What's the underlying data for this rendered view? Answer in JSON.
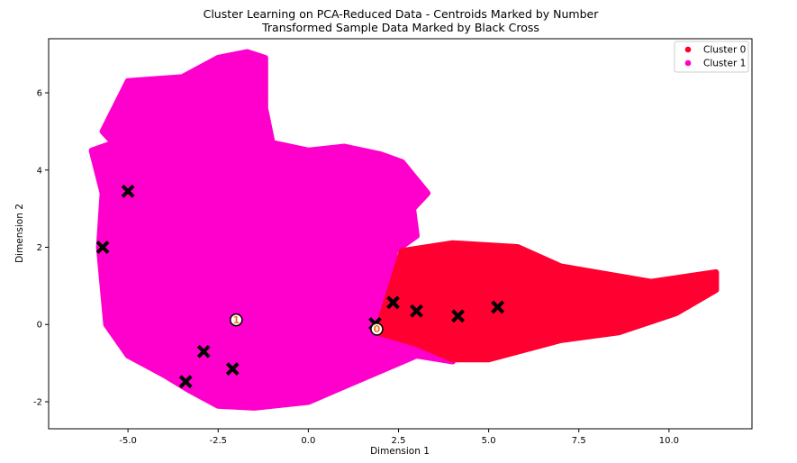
{
  "chart_data": {
    "type": "scatter",
    "title": "Cluster Learning on PCA-Reduced Data - Centroids Marked by Number",
    "subtitle": "Transformed Sample Data Marked by Black Cross",
    "xlabel": "Dimension 1",
    "ylabel": "Dimension 2",
    "xlim": [
      -7.2,
      12.3
    ],
    "ylim": [
      -2.7,
      7.4
    ],
    "xticks": [
      -5.0,
      -2.5,
      0.0,
      2.5,
      5.0,
      7.5,
      10.0
    ],
    "xtick_labels": [
      "-5.0",
      "-2.5",
      "0.0",
      "2.5",
      "5.0",
      "7.5",
      "10.0"
    ],
    "yticks": [
      -2,
      0,
      2,
      4,
      6
    ],
    "ytick_labels": [
      "-2",
      "0",
      "2",
      "4",
      "6"
    ],
    "grid": false,
    "legend_position": "top-right",
    "series": [
      {
        "name": "Cluster 0",
        "color": "#ff0030",
        "region": [
          [
            1.9,
            -0.2
          ],
          [
            2.6,
            1.9
          ],
          [
            4.0,
            2.1
          ],
          [
            5.8,
            2.0
          ],
          [
            7.0,
            1.5
          ],
          [
            9.5,
            1.1
          ],
          [
            11.3,
            1.35
          ],
          [
            11.3,
            0.9
          ],
          [
            10.2,
            0.3
          ],
          [
            8.6,
            -0.2
          ],
          [
            7.0,
            -0.4
          ],
          [
            5.0,
            -0.9
          ],
          [
            4.0,
            -0.9
          ],
          [
            3.0,
            -0.5
          ]
        ]
      },
      {
        "name": "Cluster 1",
        "color": "#ff00cc",
        "region": [
          [
            -6.0,
            4.5
          ],
          [
            -5.7,
            3.4
          ],
          [
            -5.8,
            2.0
          ],
          [
            -5.6,
            0.0
          ],
          [
            -5.0,
            -0.8
          ],
          [
            -4.0,
            -1.3
          ],
          [
            -3.3,
            -1.7
          ],
          [
            -2.5,
            -2.1
          ],
          [
            -1.5,
            -2.15
          ],
          [
            0.0,
            -2.0
          ],
          [
            1.0,
            -1.6
          ],
          [
            2.0,
            -1.2
          ],
          [
            3.0,
            -0.8
          ],
          [
            4.0,
            -0.95
          ],
          [
            3.0,
            -0.4
          ],
          [
            2.1,
            -0.1
          ],
          [
            2.4,
            1.9
          ],
          [
            3.0,
            2.3
          ],
          [
            2.9,
            3.0
          ],
          [
            3.3,
            3.4
          ],
          [
            2.6,
            4.2
          ],
          [
            2.0,
            4.4
          ],
          [
            1.0,
            4.6
          ],
          [
            0.0,
            4.5
          ],
          [
            -1.0,
            4.7
          ],
          [
            -1.2,
            5.6
          ],
          [
            -1.2,
            6.9
          ],
          [
            -1.7,
            7.05
          ],
          [
            -2.5,
            6.9
          ],
          [
            -3.5,
            6.4
          ],
          [
            -5.0,
            6.3
          ],
          [
            -5.7,
            5.0
          ],
          [
            -5.4,
            4.7
          ]
        ]
      }
    ],
    "centroids": [
      {
        "label": "0",
        "x": 1.9,
        "y": -0.12
      },
      {
        "label": "1",
        "x": -2.0,
        "y": 0.12
      }
    ],
    "samples": [
      {
        "x": -5.0,
        "y": 3.45
      },
      {
        "x": -5.7,
        "y": 2.0
      },
      {
        "x": -2.9,
        "y": -0.7
      },
      {
        "x": -2.1,
        "y": -1.15
      },
      {
        "x": -3.4,
        "y": -1.48
      },
      {
        "x": 1.85,
        "y": 0.02
      },
      {
        "x": 2.35,
        "y": 0.57
      },
      {
        "x": 3.0,
        "y": 0.35
      },
      {
        "x": 4.15,
        "y": 0.22
      },
      {
        "x": 5.25,
        "y": 0.45
      }
    ],
    "marker_colors": {
      "sample": "#000000",
      "centroid_edge": "#000000",
      "centroid_fill": "#ffffff",
      "centroid_label": "#e87e1f"
    }
  }
}
